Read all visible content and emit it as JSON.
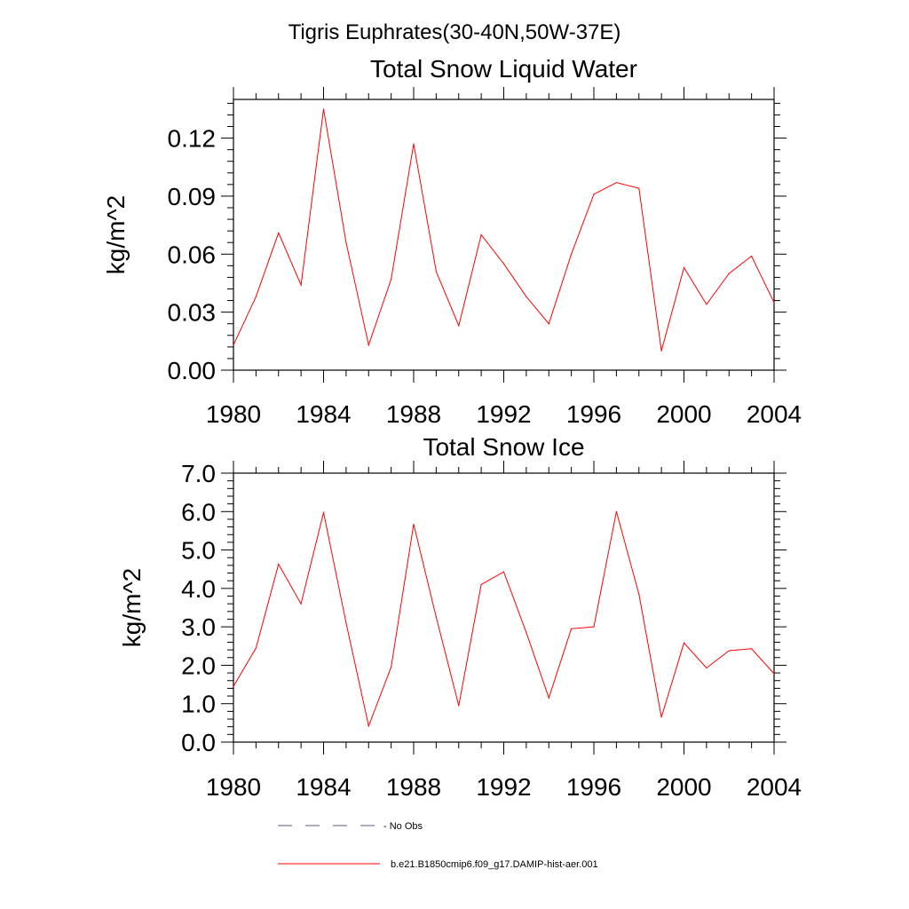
{
  "figure": {
    "title": "Tigris Euphrates(30-40N,50W-37E)"
  },
  "legend": [
    {
      "label": "- No Obs",
      "color": "#5a5a8a",
      "style": "dashed"
    },
    {
      "label": "b.e21.B1850cmip6.f09_g17.DAMIP-hist-aer.001",
      "color": "#ff0000",
      "style": "solid"
    }
  ],
  "chart_data": [
    {
      "type": "line",
      "title": "Total Snow Liquid Water",
      "xlabel": "",
      "ylabel": "kg/m^2",
      "xlim": [
        1980,
        2004
      ],
      "ylim": [
        0,
        0.14
      ],
      "xticks": [
        1980,
        1984,
        1988,
        1992,
        1996,
        2000,
        2004
      ],
      "xtick_labels": [
        "1980",
        "1984",
        "1988",
        "1992",
        "1996",
        "2000",
        "2004"
      ],
      "yticks": [
        0,
        0.03,
        0.06,
        0.09,
        0.12
      ],
      "ytick_labels": [
        "0.00",
        "0.03",
        "0.06",
        "0.09",
        "0.12"
      ],
      "grid": false,
      "x": [
        1980,
        1981,
        1982,
        1983,
        1984,
        1985,
        1986,
        1987,
        1988,
        1989,
        1990,
        1991,
        1992,
        1993,
        1994,
        1995,
        1996,
        1997,
        1998,
        1999,
        2000,
        2001,
        2002,
        2003,
        2004
      ],
      "series": [
        {
          "name": "b.e21.B1850cmip6.f09_g17.DAMIP-hist-aer.001",
          "color": "#ff0000",
          "values": [
            0.013,
            0.038,
            0.071,
            0.044,
            0.135,
            0.066,
            0.013,
            0.047,
            0.117,
            0.051,
            0.023,
            0.07,
            0.055,
            0.038,
            0.024,
            0.06,
            0.091,
            0.097,
            0.094,
            0.01,
            0.053,
            0.034,
            0.05,
            0.059,
            0.035
          ]
        }
      ]
    },
    {
      "type": "line",
      "title": "Total Snow Ice",
      "xlabel": "",
      "ylabel": "kg/m^2",
      "xlim": [
        1980,
        2004
      ],
      "ylim": [
        0,
        7
      ],
      "xticks": [
        1980,
        1984,
        1988,
        1992,
        1996,
        2000,
        2004
      ],
      "xtick_labels": [
        "1980",
        "1984",
        "1988",
        "1992",
        "1996",
        "2000",
        "2004"
      ],
      "yticks": [
        0,
        1,
        2,
        3,
        4,
        5,
        6,
        7
      ],
      "ytick_labels": [
        "0.0",
        "1.0",
        "2.0",
        "3.0",
        "4.0",
        "5.0",
        "6.0",
        "7.0"
      ],
      "grid": false,
      "x": [
        1980,
        1981,
        1982,
        1983,
        1984,
        1985,
        1986,
        1987,
        1988,
        1989,
        1990,
        1991,
        1992,
        1993,
        1994,
        1995,
        1996,
        1997,
        1998,
        1999,
        2000,
        2001,
        2002,
        2003,
        2004
      ],
      "series": [
        {
          "name": "b.e21.B1850cmip6.f09_g17.DAMIP-hist-aer.001",
          "color": "#ff0000",
          "values": [
            1.45,
            2.45,
            4.63,
            3.6,
            5.98,
            3.1,
            0.42,
            1.95,
            5.67,
            3.25,
            0.95,
            4.1,
            4.43,
            2.85,
            1.15,
            2.95,
            3.0,
            6.0,
            3.85,
            0.65,
            2.58,
            1.93,
            2.38,
            2.43,
            1.78
          ]
        }
      ]
    }
  ]
}
